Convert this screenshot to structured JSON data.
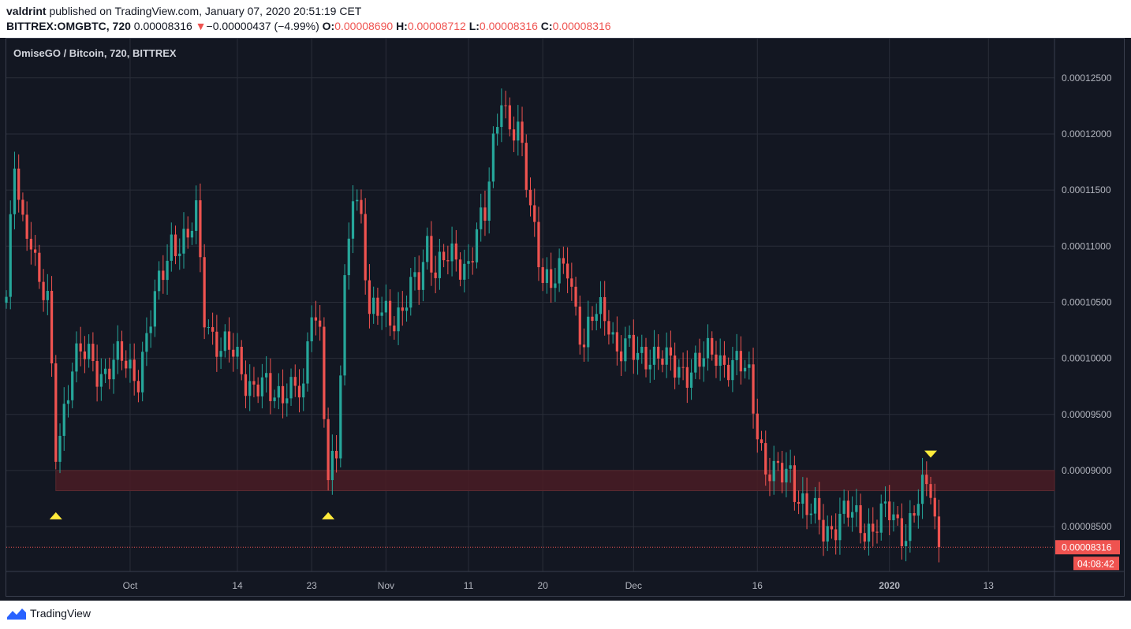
{
  "header": {
    "author": "valdrint",
    "published_text": " published on TradingView.com, January 07, 2020 20:51:19 CET",
    "symbol": "BITTREX:OMGBTC, 720",
    "last_price": "0.00008316",
    "change_arrow": "▼",
    "change": "−0.00000437 (−4.99%)",
    "o_label": "O:",
    "o_value": "0.00008690",
    "h_label": "H:",
    "h_value": "0.00008712",
    "l_label": "L:",
    "l_value": "0.00008316",
    "c_label": "C:",
    "c_value": "0.00008316"
  },
  "chart_title": "OmiseGO / Bitcoin, 720, BITTREX",
  "price_tag": "0.00008316",
  "countdown_tag": "04:08:42",
  "footer": {
    "logo_text": "TradingView",
    "logo_icon": "tradingview-logo-icon"
  },
  "colors": {
    "background": "#131722",
    "grid": "#2a2e39",
    "up": "#26a69a",
    "down": "#ef5350",
    "marker": "#ffeb3b",
    "zone": "#4a1c24"
  },
  "chart_data": {
    "type": "candlestick",
    "title": "OmiseGO / Bitcoin, 720, BITTREX",
    "symbol": "BITTREX:OMGBTC",
    "interval": "720",
    "y_axis_side": "right",
    "ylim": [
      8.1e-05,
      0.0001285
    ],
    "y_ticks": [
      "0.00008500",
      "0.00009000",
      "0.00009500",
      "0.00010000",
      "0.00010500",
      "0.00011000",
      "0.00011500",
      "0.00012000",
      "0.00012500"
    ],
    "x_ticks": [
      {
        "label": "Oct",
        "date": "2019-10-01"
      },
      {
        "label": "14",
        "date": "2019-10-14"
      },
      {
        "label": "23",
        "date": "2019-10-23"
      },
      {
        "label": "Nov",
        "date": "2019-11-01"
      },
      {
        "label": "11",
        "date": "2019-11-11"
      },
      {
        "label": "20",
        "date": "2019-11-20"
      },
      {
        "label": "Dec",
        "date": "2019-12-01"
      },
      {
        "label": "16",
        "date": "2019-12-16"
      },
      {
        "label": "2020",
        "date": "2020-01-01",
        "bold": true
      },
      {
        "label": "13",
        "date": "2020-01-13"
      }
    ],
    "x_range": [
      "2019-09-16",
      "2020-01-21"
    ],
    "candle_interval_hours": 12,
    "last_price": 8.316e-05,
    "support_zone": {
      "from_date": "2019-09-22",
      "to_date": "2020-01-21",
      "low": 8.82e-05,
      "high": 9e-05
    },
    "markers": [
      {
        "date": "2019-09-22",
        "price": 8.6e-05,
        "direction": "up"
      },
      {
        "date": "2019-10-25",
        "price": 8.6e-05,
        "direction": "up"
      },
      {
        "date": "2020-01-06",
        "price": 9.15e-05,
        "direction": "down"
      }
    ],
    "anchors": [
      [
        "2019-09-16",
        0.0001045
      ],
      [
        "2019-09-17",
        0.000117
      ],
      [
        "2019-09-18",
        0.0001125
      ],
      [
        "2019-09-19",
        0.0001115
      ],
      [
        "2019-09-20",
        0.000106
      ],
      [
        "2019-09-21",
        0.0001045
      ],
      [
        "2019-09-22",
        9.2e-05
      ],
      [
        "2019-09-23",
        9.6e-05
      ],
      [
        "2019-09-24",
        9.95e-05
      ],
      [
        "2019-09-26",
        0.0001
      ],
      [
        "2019-09-28",
        9.9e-05
      ],
      [
        "2019-09-30",
        9.95e-05
      ],
      [
        "2019-10-02",
        9.9e-05
      ],
      [
        "2019-10-04",
        0.0001045
      ],
      [
        "2019-10-06",
        0.000111
      ],
      [
        "2019-10-08",
        0.00011
      ],
      [
        "2019-10-09",
        0.0001125
      ],
      [
        "2019-10-10",
        0.0001045
      ],
      [
        "2019-10-12",
        0.0001005
      ],
      [
        "2019-10-14",
        0.0001
      ],
      [
        "2019-10-16",
        9.75e-05
      ],
      [
        "2019-10-18",
        9.65e-05
      ],
      [
        "2019-10-20",
        9.8e-05
      ],
      [
        "2019-10-22",
        9.6e-05
      ],
      [
        "2019-10-23",
        0.000105
      ],
      [
        "2019-10-24",
        0.000103
      ],
      [
        "2019-10-25",
        8.95e-05
      ],
      [
        "2019-10-26",
        9.05e-05
      ],
      [
        "2019-10-27",
        0.000106
      ],
      [
        "2019-10-28",
        0.000116
      ],
      [
        "2019-10-29",
        0.000113
      ],
      [
        "2019-10-30",
        0.000103
      ],
      [
        "2019-11-01",
        0.0001045
      ],
      [
        "2019-11-03",
        0.000104
      ],
      [
        "2019-11-05",
        0.000107
      ],
      [
        "2019-11-06",
        0.000111
      ],
      [
        "2019-11-07",
        0.000108
      ],
      [
        "2019-11-09",
        0.0001085
      ],
      [
        "2019-11-11",
        0.000109
      ],
      [
        "2019-11-12",
        0.000111
      ],
      [
        "2019-11-13",
        0.000112
      ],
      [
        "2019-11-14",
        0.000119
      ],
      [
        "2019-11-15",
        0.0001245
      ],
      [
        "2019-11-16",
        0.0001205
      ],
      [
        "2019-11-17",
        0.0001195
      ],
      [
        "2019-11-18",
        0.0001155
      ],
      [
        "2019-11-19",
        0.000112
      ],
      [
        "2019-11-20",
        0.000108
      ],
      [
        "2019-11-21",
        0.000106
      ],
      [
        "2019-11-22",
        0.000107
      ],
      [
        "2019-11-23",
        0.0001085
      ],
      [
        "2019-11-24",
        0.000105
      ],
      [
        "2019-11-25",
        0.000101
      ],
      [
        "2019-11-26",
        0.000103
      ],
      [
        "2019-11-27",
        0.000104
      ],
      [
        "2019-11-28",
        0.000104
      ],
      [
        "2019-11-29",
        0.000101
      ],
      [
        "2019-12-01",
        0.0001
      ],
      [
        "2019-12-03",
        0.000101
      ],
      [
        "2019-12-05",
        9.9e-05
      ],
      [
        "2019-12-07",
        9.95e-05
      ],
      [
        "2019-12-09",
        9.9e-05
      ],
      [
        "2019-12-11",
        0.000101
      ],
      [
        "2019-12-13",
        9.9e-05
      ],
      [
        "2019-12-15",
        9.85e-05
      ],
      [
        "2019-12-16",
        9.45e-05
      ],
      [
        "2019-12-17",
        9e-05
      ],
      [
        "2019-12-18",
        8.9e-05
      ],
      [
        "2019-12-19",
        8.95e-05
      ],
      [
        "2019-12-20",
        9.05e-05
      ],
      [
        "2019-12-21",
        8.8e-05
      ],
      [
        "2019-12-22",
        8.6e-05
      ],
      [
        "2019-12-24",
        8.5e-05
      ],
      [
        "2019-12-26",
        8.58e-05
      ],
      [
        "2019-12-28",
        8.55e-05
      ],
      [
        "2019-12-30",
        8.52e-05
      ],
      [
        "2020-01-01",
        8.58e-05
      ],
      [
        "2020-01-03",
        8.5e-05
      ],
      [
        "2020-01-05",
        8.75e-05
      ],
      [
        "2020-01-06",
        8.85e-05
      ],
      [
        "2020-01-07",
        8.316e-05
      ]
    ]
  }
}
